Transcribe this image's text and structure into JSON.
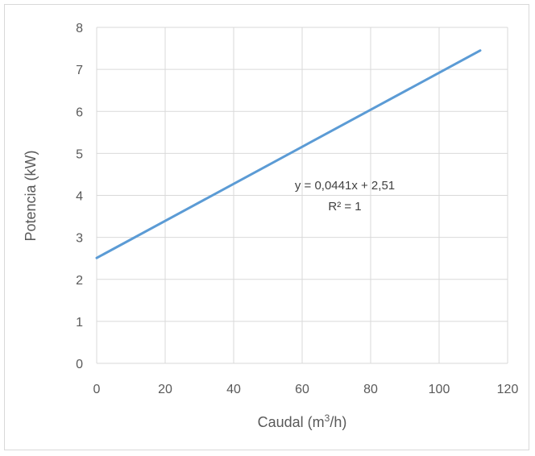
{
  "chart_data": {
    "type": "line",
    "title": "",
    "xlabel": "Caudal (m³/h)",
    "xlabel_parts": {
      "before": "Caudal (m",
      "sup": "3",
      "after": "/h)"
    },
    "ylabel": "Potencia (kW)",
    "xlim": [
      0,
      120
    ],
    "ylim": [
      0,
      8
    ],
    "xticks": [
      "0",
      "20",
      "40",
      "60",
      "80",
      "100",
      "120"
    ],
    "yticks": [
      "0",
      "1",
      "2",
      "3",
      "4",
      "5",
      "6",
      "7",
      "8"
    ],
    "grid": true,
    "legend": "none",
    "series": [
      {
        "x": [
          0,
          112
        ],
        "y": [
          2.51,
          7.45
        ],
        "color": "#5b9bd5"
      }
    ],
    "annotations": {
      "equation": "y = 0,0441x + 2,51",
      "r_squared": "R² = 1"
    }
  }
}
